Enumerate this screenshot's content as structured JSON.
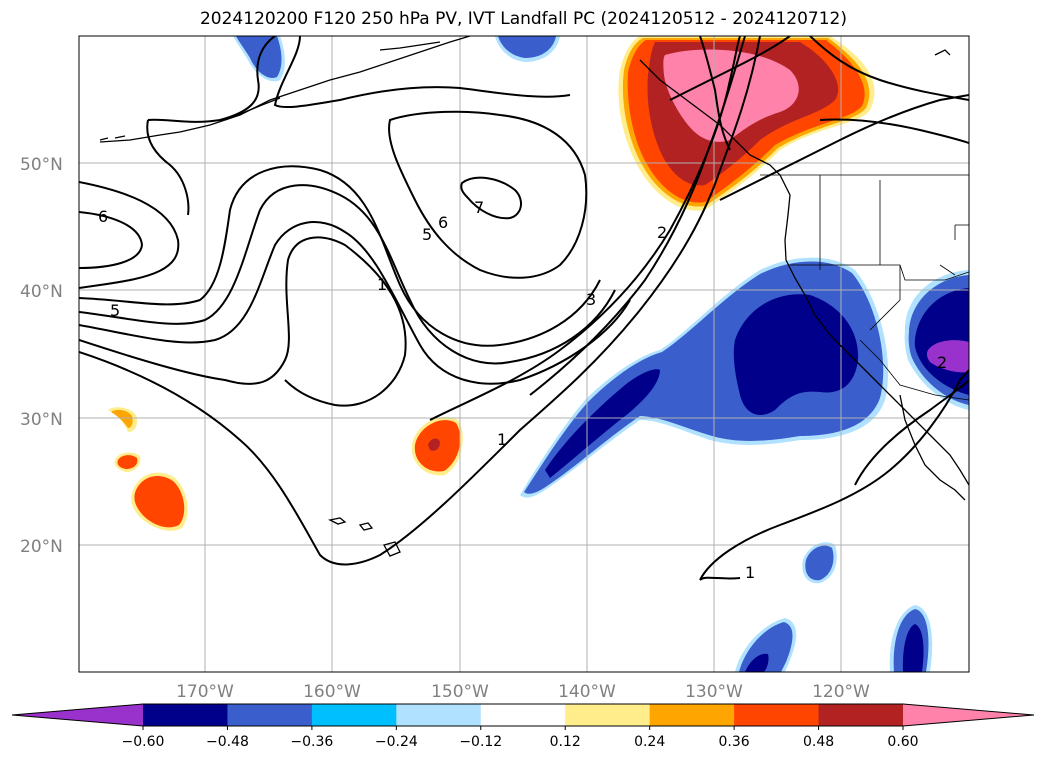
{
  "title": "2024120200 F120 250 hPa PV, IVT Landfall PC (2024120512 - 2024120712)",
  "lat_labels": [
    "50°N",
    "40°N",
    "30°N",
    "20°N"
  ],
  "lon_labels": [
    "170°W",
    "160°W",
    "150°W",
    "140°W",
    "130°W",
    "120°W"
  ],
  "contour_labels": [
    "6",
    "5",
    "7",
    "6",
    "5",
    "1",
    "3",
    "2",
    "1",
    "1",
    "2"
  ],
  "colorbar": {
    "ticks": [
      "−0.60",
      "−0.48",
      "−0.36",
      "−0.24",
      "−0.12",
      "0.12",
      "0.24",
      "0.36",
      "0.48",
      "0.60"
    ],
    "colors": [
      "#9932cc",
      "#00008b",
      "#3a5fcd",
      "#00bfff",
      "#b0e2ff",
      "#ffffff",
      "#ffec8b",
      "#ffa500",
      "#ff4500",
      "#b22222",
      "#ff82ab"
    ]
  },
  "colors": {
    "land_outline": "#000000",
    "grid": "#b0b0b0",
    "contour": "#000000"
  }
}
